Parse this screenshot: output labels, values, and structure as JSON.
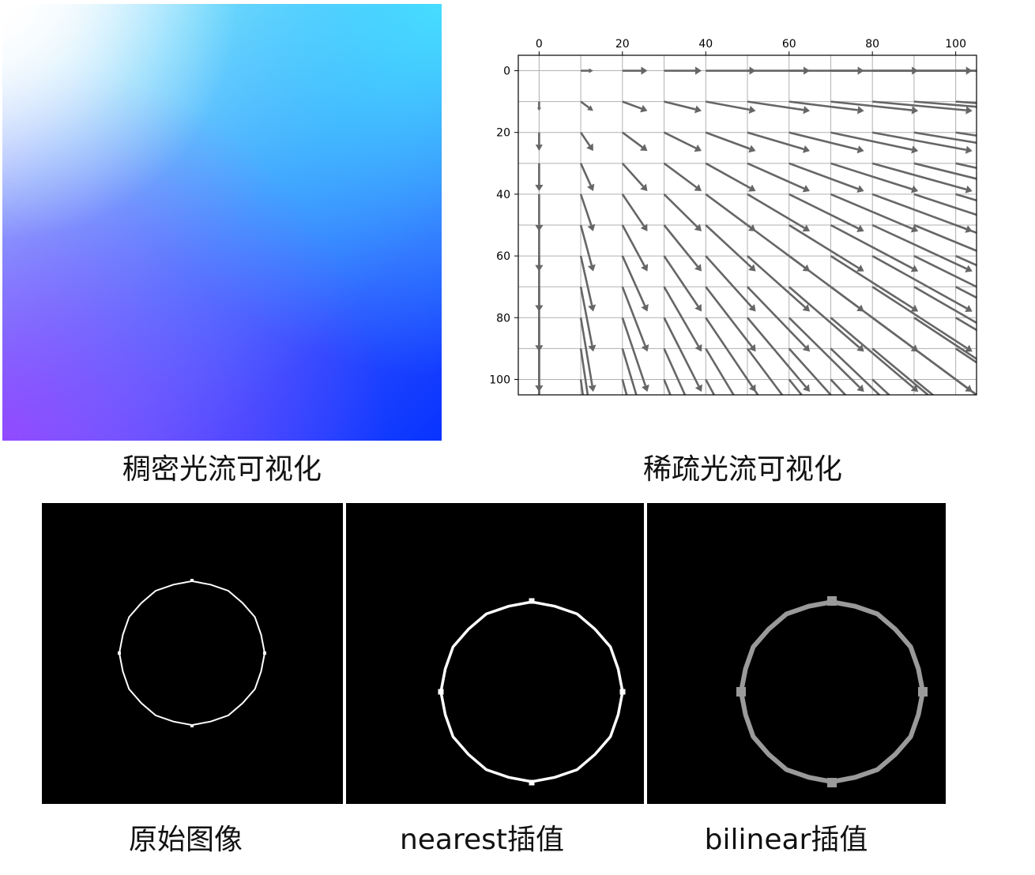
{
  "captions": {
    "dense": "稠密光流可视化",
    "sparse": "稀疏光流可视化",
    "original": "原始图像",
    "nearest": "nearest插值",
    "bilinear": "bilinear插值"
  },
  "colors": {
    "arrow": "#666666",
    "grid": "#b0b0b0",
    "axis": "#000000",
    "circle_original": "#ffffff",
    "circle_nearest": "#ffffff",
    "circle_bilinear": "#9a9a9a",
    "strip_background": "#000000",
    "separator": "#ffffff",
    "dense_gradient": [
      "#ffffff",
      "#46e1ff",
      "#3f8cff",
      "#9646ff",
      "#0833ff"
    ]
  },
  "chart_data": [
    {
      "type": "quiver",
      "title": "",
      "xlabel": "",
      "ylabel": "",
      "xlim": [
        -5,
        105
      ],
      "ylim": [
        105,
        -5
      ],
      "x_axis_position": "top",
      "y_inverted": true,
      "grid": true,
      "xticks": [
        0,
        20,
        40,
        60,
        80,
        100
      ],
      "yticks": [
        0,
        20,
        40,
        60,
        80,
        100
      ],
      "x": [
        0,
        10,
        20,
        30,
        40,
        50,
        60,
        70,
        80,
        90,
        100
      ],
      "y": [
        0,
        10,
        20,
        30,
        40,
        50,
        60,
        70,
        80,
        90,
        100
      ],
      "u_formula": "u = x / 10",
      "v_formula": "v = y / 10"
    }
  ]
}
